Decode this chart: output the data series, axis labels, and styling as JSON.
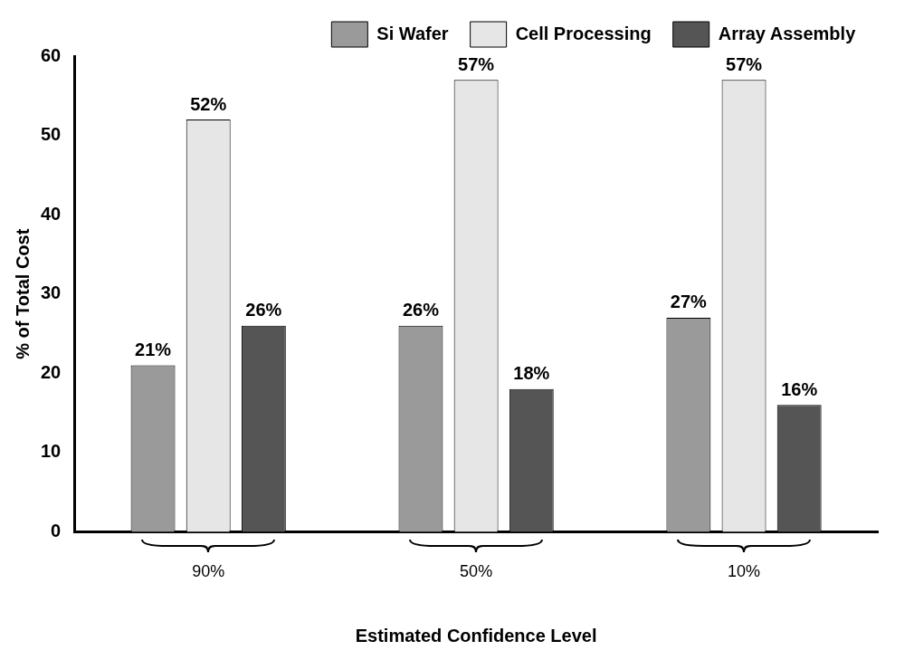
{
  "chart_data": {
    "type": "bar",
    "xlabel": "Estimated Confidence Level",
    "ylabel": "% of Total Cost",
    "categories": [
      "90%",
      "50%",
      "10%"
    ],
    "series": [
      {
        "name": "Si Wafer",
        "color": "#9a9a9a",
        "values": [
          21,
          26,
          27
        ],
        "value_labels": [
          "21%",
          "26%",
          "27%"
        ]
      },
      {
        "name": "Cell Processing",
        "color": "#e6e6e6",
        "values": [
          52,
          57,
          57
        ],
        "value_labels": [
          "52%",
          "57%",
          "57%"
        ]
      },
      {
        "name": "Array Assembly",
        "color": "#555555",
        "values": [
          26,
          18,
          16
        ],
        "value_labels": [
          "26%",
          "18%",
          "16%"
        ]
      }
    ],
    "ylim": [
      0,
      60
    ],
    "yticks": [
      0,
      10,
      20,
      30,
      40,
      50,
      60
    ],
    "grid": false,
    "legend": "top"
  }
}
